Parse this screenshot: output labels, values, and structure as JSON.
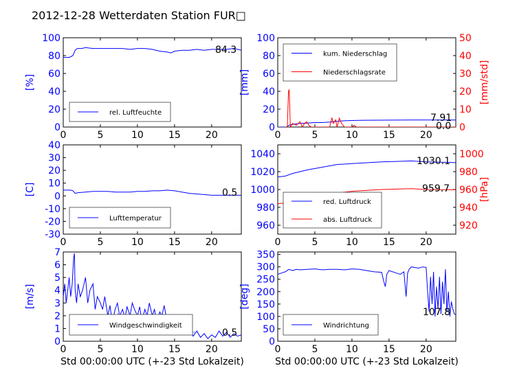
{
  "title": "2012-12-28 Wetterdaten Station FUR",
  "title_suffix_glyph": "□",
  "colors": {
    "blue": "#0000ff",
    "red": "#ff0000",
    "lightblue": "#8080ff",
    "black": "#000000"
  },
  "shared_xlabel": "Std 00:00:00 UTC (+-23 Std Lokalzeit)",
  "chart_data": [
    {
      "id": "humidity",
      "type": "line",
      "xlim": [
        0,
        24
      ],
      "xticks": [
        0,
        5,
        10,
        15,
        20
      ],
      "ylim": [
        0,
        100
      ],
      "yticks": [
        0,
        20,
        40,
        60,
        80,
        100
      ],
      "ylabel": "[%]",
      "legend_placement": "lower-left",
      "current_value": "84.3",
      "series": [
        {
          "name": "rel. Luftfeuchte",
          "color": "#0000ff",
          "axis": "left",
          "x": [
            0,
            0.8,
            1.3,
            1.6,
            1.9,
            2.5,
            3,
            4,
            5,
            6,
            7,
            8,
            9,
            10,
            11,
            12,
            13,
            14,
            14.5,
            15,
            16,
            17,
            18,
            19,
            20,
            21,
            22,
            23,
            24
          ],
          "y": [
            78,
            78,
            80,
            86,
            88,
            88,
            89,
            88,
            88,
            88,
            88,
            88,
            87,
            88,
            88,
            87,
            85,
            84,
            83,
            85,
            86,
            86,
            87,
            86,
            87,
            87,
            87,
            88,
            86
          ]
        }
      ]
    },
    {
      "id": "precip",
      "type": "line",
      "xlim": [
        0,
        24
      ],
      "xticks": [
        0,
        5,
        10,
        15,
        20
      ],
      "ylim": [
        0,
        100
      ],
      "yticks": [
        0,
        20,
        40,
        60,
        80,
        100
      ],
      "ylabel": "[mm]",
      "ylim_right": [
        0,
        50
      ],
      "yticks_right": [
        0,
        10,
        20,
        30,
        40,
        50
      ],
      "ylabel_right": "[mm/std]",
      "legend_placement": "upper-left",
      "current_value": "7.91",
      "current_value_2": "0.0",
      "series": [
        {
          "name": "kum. Niederschlag",
          "color": "#0000ff",
          "axis": "left",
          "x": [
            0,
            1.2,
            1.5,
            2,
            3,
            4,
            5,
            6,
            7,
            7.5,
            8,
            9,
            10,
            11,
            12,
            14,
            16,
            18,
            20,
            22,
            24
          ],
          "y": [
            0,
            0,
            2,
            3,
            4,
            4.5,
            5,
            5,
            5.5,
            6,
            6.5,
            7,
            7.3,
            7.5,
            7.6,
            7.7,
            7.8,
            7.85,
            7.9,
            7.91,
            7.91
          ]
        },
        {
          "name": "Niederschlagsrate",
          "color": "#ff0000",
          "axis": "right",
          "x": [
            1,
            1.3,
            1.45,
            1.55,
            1.7,
            2,
            2.5,
            3,
            3.3,
            3.6,
            3.9,
            4.2,
            4.5,
            5,
            6,
            7,
            7.3,
            7.5,
            7.8,
            8,
            8.3,
            8.6,
            9,
            9.5,
            10,
            10.3,
            10.6,
            11,
            12,
            24
          ],
          "y": [
            0,
            0,
            20,
            21,
            0,
            2,
            1,
            3,
            0,
            2,
            3,
            1,
            0,
            0,
            0,
            0,
            5,
            2,
            4,
            0,
            5,
            2,
            0,
            0,
            0,
            1,
            0,
            0,
            0,
            0
          ]
        }
      ]
    },
    {
      "id": "temperature",
      "type": "line",
      "xlim": [
        0,
        24
      ],
      "xticks": [
        0,
        5,
        10,
        15,
        20
      ],
      "ylim": [
        -30,
        40
      ],
      "yticks": [
        -30,
        -20,
        -10,
        0,
        10,
        20,
        30,
        40
      ],
      "ylabel": "[C]",
      "legend_placement": "lower-left",
      "current_value": "0.5",
      "series": [
        {
          "name": "Lufttemperatur",
          "color": "#0000ff",
          "axis": "left",
          "x": [
            0,
            1,
            1.3,
            1.6,
            2,
            3,
            4,
            5,
            6,
            7,
            8,
            9,
            10,
            11,
            12,
            13,
            14,
            15,
            16,
            17,
            18,
            19,
            20,
            21,
            22,
            23,
            24
          ],
          "y": [
            4.5,
            4.5,
            4,
            2,
            2.5,
            3,
            3.5,
            3.5,
            3.5,
            3,
            3,
            3,
            3.5,
            3.5,
            4,
            4,
            4.5,
            4,
            3,
            2,
            1.5,
            1,
            0.5,
            0.5,
            0.5,
            0.5,
            0.5
          ]
        }
      ]
    },
    {
      "id": "pressure",
      "type": "line",
      "xlim": [
        0,
        24
      ],
      "xticks": [
        0,
        5,
        10,
        15,
        20
      ],
      "ylim": [
        950,
        1050
      ],
      "yticks": [
        960,
        980,
        1000,
        1020,
        1040
      ],
      "ylim_right": [
        910,
        1010
      ],
      "yticks_right": [
        920,
        940,
        960,
        980,
        1000
      ],
      "ylabel_right": "[hPa]",
      "legend_placement": "lower-left",
      "current_value": "1030.1",
      "current_value_2": "959.7",
      "series": [
        {
          "name": "red. Luftdruck",
          "color": "#0000ff",
          "axis": "left",
          "x": [
            0,
            1,
            2,
            4,
            6,
            8,
            10,
            12,
            14,
            16,
            18,
            20,
            22,
            24
          ],
          "y": [
            1014,
            1015,
            1018,
            1022,
            1025,
            1028,
            1029,
            1030,
            1031,
            1031.5,
            1032,
            1031,
            1030.5,
            1030.1
          ]
        },
        {
          "name": "abs. Luftdruck",
          "color": "#ff0000",
          "axis": "right",
          "x": [
            0,
            1,
            2,
            4,
            6,
            8,
            10,
            12,
            14,
            16,
            18,
            20,
            22,
            24
          ],
          "y": [
            944,
            945,
            947,
            950,
            953,
            956,
            958,
            959,
            960,
            960.5,
            961,
            960,
            959.8,
            959.7
          ]
        }
      ]
    },
    {
      "id": "wind_speed",
      "type": "line",
      "xlim": [
        0,
        24
      ],
      "xticks": [
        0,
        5,
        10,
        15,
        20
      ],
      "ylim": [
        0,
        7
      ],
      "yticks": [
        0,
        1,
        2,
        3,
        4,
        5,
        6,
        7
      ],
      "ylabel": "[m/s]",
      "xlabel": "Std 00:00:00 UTC (+-23 Std Lokalzeit)",
      "legend_placement": "lower-left",
      "current_value": "0.5",
      "series": [
        {
          "name": "Windgeschwindigkeit",
          "color": "#0000ff",
          "axis": "left",
          "x": [
            0,
            0.2,
            0.4,
            0.6,
            0.8,
            1,
            1.2,
            1.4,
            1.5,
            1.6,
            1.8,
            2,
            2.3,
            2.6,
            3,
            3.3,
            3.6,
            4,
            4.3,
            4.6,
            5,
            5.3,
            5.6,
            6,
            6.3,
            6.6,
            7,
            7.3,
            7.6,
            8,
            8.3,
            8.6,
            9,
            9.3,
            9.6,
            10,
            10.3,
            10.6,
            11,
            11.3,
            11.6,
            12,
            12.3,
            12.6,
            13,
            13.3,
            13.6,
            14,
            14.3,
            14.6,
            15,
            15.5,
            16,
            16.5,
            17,
            17.5,
            18,
            18.5,
            19,
            19.5,
            20,
            20.5,
            21,
            21.5,
            22,
            22.5,
            23,
            23.5,
            24
          ],
          "y": [
            3.5,
            4.5,
            3,
            4,
            5,
            3.5,
            4.5,
            6.5,
            6.9,
            4,
            3,
            4.5,
            3.5,
            4,
            5,
            3,
            4,
            4.5,
            2.5,
            3.5,
            3,
            2.5,
            3.5,
            2,
            2.8,
            1.5,
            2.5,
            3,
            2,
            2.5,
            1.8,
            2.7,
            2,
            3,
            2.5,
            2,
            2.7,
            1.6,
            2.5,
            2,
            3,
            2,
            2.5,
            1.5,
            2.3,
            2,
            2.8,
            1.5,
            1,
            0.8,
            0.7,
            1,
            0.6,
            0.8,
            1,
            0.4,
            0.8,
            0.3,
            0.6,
            0.2,
            0.5,
            0.3,
            0.8,
            0.4,
            0.7,
            0.3,
            0.6,
            0.4,
            0.5
          ]
        },
        {
          "name": "",
          "color": "#8080ff",
          "axis": "left",
          "x": [
            7,
            7.5,
            8,
            8.5,
            9,
            9.5,
            10,
            10.5,
            11,
            11.5,
            12,
            12.5,
            13,
            13.5,
            14,
            14.5,
            15,
            15.5,
            16,
            16.5,
            17,
            17.5,
            18
          ],
          "y": [
            1.9,
            2.2,
            1.7,
            2,
            1.8,
            2.1,
            1.9,
            2,
            1.7,
            1.9,
            1.8,
            1.6,
            1.7,
            1.8,
            1.5,
            1.2,
            1,
            0.9,
            0.8,
            0.9,
            0.8,
            0.7,
            0.7
          ]
        }
      ]
    },
    {
      "id": "wind_dir",
      "type": "line",
      "xlim": [
        0,
        24
      ],
      "xticks": [
        0,
        5,
        10,
        15,
        20
      ],
      "ylim": [
        0,
        360
      ],
      "yticks": [
        0,
        50,
        100,
        150,
        200,
        250,
        300,
        350
      ],
      "ylabel": "[deg]",
      "xlabel": "Std 00:00:00 UTC (+-23 Std Lokalzeit)",
      "legend_placement": "lower-left",
      "current_value": "107.8",
      "series": [
        {
          "name": "Windrichtung",
          "color": "#0000ff",
          "axis": "left",
          "x": [
            0,
            0.5,
            1,
            1.5,
            2,
            2.5,
            3,
            4,
            5,
            6,
            7,
            8,
            9,
            10,
            11,
            12,
            13,
            14,
            14.3,
            14.5,
            14.7,
            15,
            16,
            16.5,
            17,
            17.3,
            17.5,
            17.7,
            18,
            19,
            19.5,
            20,
            20.2,
            20.4,
            20.6,
            20.8,
            21,
            21.2,
            21.4,
            21.6,
            21.8,
            22,
            22.2,
            22.4,
            22.6,
            22.8,
            23,
            23.2,
            23.4,
            23.6,
            23.8,
            24
          ],
          "y": [
            270,
            275,
            280,
            290,
            285,
            290,
            288,
            290,
            292,
            288,
            290,
            290,
            288,
            292,
            290,
            285,
            280,
            278,
            240,
            220,
            270,
            285,
            275,
            270,
            280,
            180,
            275,
            290,
            300,
            295,
            300,
            298,
            200,
            120,
            260,
            150,
            280,
            100,
            220,
            130,
            260,
            110,
            240,
            150,
            290,
            120,
            200,
            100,
            160,
            130,
            110,
            107.8
          ]
        }
      ]
    }
  ]
}
